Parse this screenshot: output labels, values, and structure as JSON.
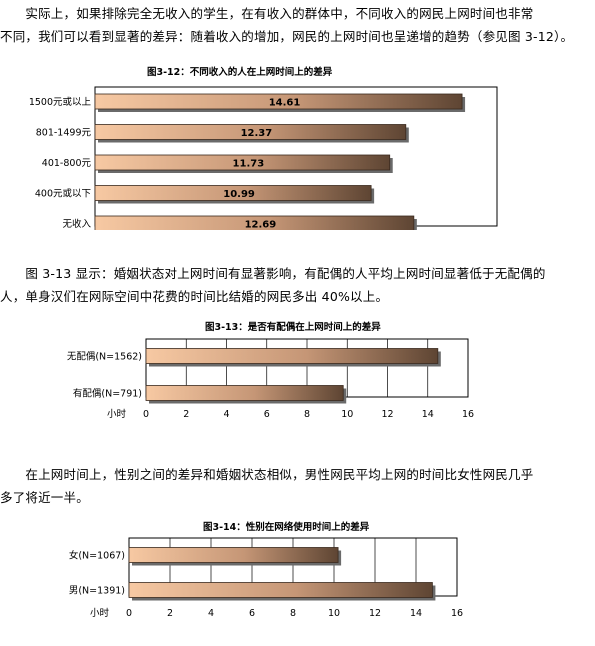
{
  "paragraphs": [
    {
      "line1": "　　实际上，如果排除完全无收入的学生，在有收入的群体中，不同收入的网民上网时间也非常",
      "line2": "不同，我们可以看到显著的差异：随着收入的增加，网民的上网时间也呈递增的趋势（参见图 3-12）。"
    },
    {
      "line1": "　　图 3-13 显示：婚姻状态对上网时间有显著影响，有配偶的人平均上网时间显著低于无配偶的",
      "line2": "人，单身汉们在网际空间中花费的时间比结婚的网民多出 40%以上。"
    },
    {
      "line1": "　　在上网时间上，性别之间的差异和婚姻状态相似，男性网民平均上网的时间比女性网民几乎",
      "line2": "多了将近一半。"
    }
  ],
  "colors": {
    "bar_left": "#f7c9a3",
    "bar_mid": "#c59676",
    "bar_right": "#5e4533",
    "shadow": "#6a6a6a",
    "axis": "#000000",
    "grid": "#000000"
  },
  "chart_data": [
    {
      "type": "bar",
      "orientation": "horizontal",
      "title": "图3-12：不同收入的人在上网时间上的差异",
      "categories": [
        "1500元或以上",
        "801-1499元",
        "401-800元",
        "400元或以下",
        "无收入"
      ],
      "values": [
        14.61,
        12.37,
        11.73,
        10.99,
        12.69
      ],
      "value_labels": [
        "14.61",
        "12.37",
        "11.73",
        "10.99",
        "12.69"
      ],
      "xlim": [
        0,
        16
      ],
      "show_x_ticks": false,
      "grid": false,
      "legend": "none"
    },
    {
      "type": "bar",
      "orientation": "horizontal",
      "title": "图3-13：是否有配偶在上网时间上的差异",
      "categories": [
        "无配偶(N=1562)",
        "有配偶(N=791)"
      ],
      "values": [
        14.5,
        9.8
      ],
      "xlim": [
        0,
        16
      ],
      "xticks": [
        "0",
        "2",
        "4",
        "6",
        "8",
        "10",
        "12",
        "14",
        "16"
      ],
      "xlabel": "小时",
      "grid": true,
      "legend": "none"
    },
    {
      "type": "bar",
      "orientation": "horizontal",
      "title": "图3-14：性别在网络使用时间上的差异",
      "categories": [
        "女(N=1067)",
        "男(N=1391)"
      ],
      "values": [
        10.2,
        14.8
      ],
      "xlim": [
        0,
        16
      ],
      "xticks": [
        "0",
        "2",
        "4",
        "6",
        "8",
        "10",
        "12",
        "14",
        "16"
      ],
      "xlabel": "小时",
      "grid": true,
      "legend": "none"
    }
  ]
}
